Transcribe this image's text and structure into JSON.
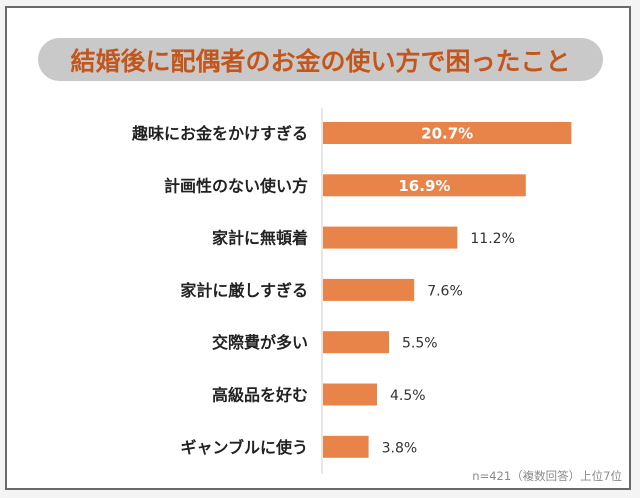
{
  "chart_data": {
    "type": "bar",
    "orientation": "horizontal",
    "title": "結婚後に配偶者のお金の使い方で困ったこと",
    "categories": [
      "趣味にお金をかけすぎる",
      "計画性のない使い方",
      "家計に無頓着",
      "家計に厳しすぎる",
      "交際費が多い",
      "高級品を好む",
      "ギャンブルに使う"
    ],
    "values": [
      20.7,
      16.9,
      11.2,
      7.6,
      5.5,
      4.5,
      3.8
    ],
    "labels": [
      "20.7%",
      "16.9%",
      "11.2%",
      "7.6%",
      "5.5%",
      "4.5%",
      "3.8%"
    ],
    "unit": "%",
    "grid": false,
    "bar_color": "#e8844a",
    "title_color": "#c4561c",
    "note": "n=421（複数回答）上位7位"
  }
}
